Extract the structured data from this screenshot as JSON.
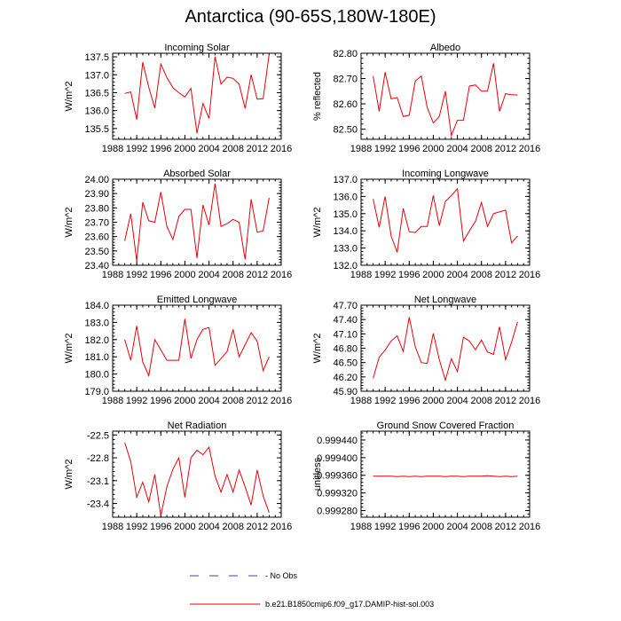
{
  "title": "Antarctica (90-65S,180W-180E)",
  "x_ticks": [
    "1988",
    "1992",
    "1996",
    "2000",
    "2004",
    "2008",
    "2012",
    "2016"
  ],
  "series_color": "#e8000b",
  "obs_color": "#4040c0",
  "legend": {
    "obs_label": "No Obs",
    "model_label": "b.e21.B1850cmip6.f09_g17.DAMIP-hist-sol.003"
  },
  "chart_data": [
    {
      "type": "line",
      "title": "Incoming Solar",
      "ylabel": "W/m^2",
      "xlim": [
        1988,
        2016
      ],
      "ylim": [
        135.2,
        137.6
      ],
      "yticks": [
        "135.5",
        "136.0",
        "136.5",
        "137.0",
        "137.5"
      ],
      "ytick_values": [
        135.5,
        136.0,
        136.5,
        137.0,
        137.5
      ],
      "x": [
        1990,
        1991,
        1992,
        1993,
        1994,
        1995,
        1996,
        1997,
        1998,
        1999,
        2000,
        2001,
        2002,
        2003,
        2004,
        2005,
        2006,
        2007,
        2008,
        2009,
        2010,
        2011,
        2012,
        2013,
        2014
      ],
      "values": [
        136.48,
        136.52,
        135.75,
        137.35,
        136.65,
        136.07,
        137.3,
        136.92,
        136.64,
        136.5,
        136.38,
        136.62,
        135.37,
        136.2,
        135.78,
        137.5,
        136.74,
        136.93,
        136.9,
        136.74,
        136.06,
        137.0,
        136.32,
        136.33,
        137.58
      ]
    },
    {
      "type": "line",
      "title": "Albedo",
      "ylabel": "% reflected",
      "xlim": [
        1988,
        2016
      ],
      "ylim": [
        82.46,
        82.8
      ],
      "yticks": [
        "82.50",
        "82.60",
        "82.70",
        "82.80"
      ],
      "ytick_values": [
        82.5,
        82.6,
        82.7,
        82.8
      ],
      "x": [
        1990,
        1991,
        1992,
        1993,
        1994,
        1995,
        1996,
        1997,
        1998,
        1999,
        2000,
        2001,
        2002,
        2003,
        2004,
        2005,
        2006,
        2007,
        2008,
        2009,
        2010,
        2011,
        2012,
        2013,
        2014
      ],
      "values": [
        82.71,
        82.57,
        82.725,
        82.62,
        82.625,
        82.55,
        82.555,
        82.69,
        82.71,
        82.585,
        82.525,
        82.55,
        82.65,
        82.475,
        82.535,
        82.535,
        82.67,
        82.675,
        82.65,
        82.65,
        82.76,
        82.57,
        82.64,
        82.636,
        82.635
      ]
    },
    {
      "type": "line",
      "title": "Absorbed Solar",
      "ylabel": "W/m^2",
      "xlim": [
        1988,
        2016
      ],
      "ylim": [
        23.4,
        24.0
      ],
      "yticks": [
        "23.40",
        "23.50",
        "23.60",
        "23.70",
        "23.80",
        "23.90",
        "24.00"
      ],
      "ytick_values": [
        23.4,
        23.5,
        23.6,
        23.7,
        23.8,
        23.9,
        24.0
      ],
      "x": [
        1990,
        1991,
        1992,
        1993,
        1994,
        1995,
        1996,
        1997,
        1998,
        1999,
        2000,
        2001,
        2002,
        2003,
        2004,
        2005,
        2006,
        2007,
        2008,
        2009,
        2010,
        2011,
        2012,
        2013,
        2014
      ],
      "values": [
        23.57,
        23.76,
        23.43,
        23.84,
        23.71,
        23.7,
        23.91,
        23.67,
        23.58,
        23.74,
        23.79,
        23.79,
        23.45,
        23.82,
        23.68,
        23.97,
        23.67,
        23.69,
        23.72,
        23.7,
        23.44,
        23.86,
        23.63,
        23.64,
        23.87
      ]
    },
    {
      "type": "line",
      "title": "Incoming Longwave",
      "ylabel": "W/m^2",
      "xlim": [
        1988,
        2016
      ],
      "ylim": [
        132.0,
        137.0
      ],
      "yticks": [
        "132.0",
        "133.0",
        "134.0",
        "135.0",
        "136.0",
        "137.0"
      ],
      "ytick_values": [
        132.0,
        133.0,
        134.0,
        135.0,
        136.0,
        137.0
      ],
      "x": [
        1990,
        1991,
        1992,
        1993,
        1994,
        1995,
        1996,
        1997,
        1998,
        1999,
        2000,
        2001,
        2002,
        2003,
        2004,
        2005,
        2006,
        2007,
        2008,
        2009,
        2010,
        2011,
        2012,
        2013,
        2014
      ],
      "values": [
        135.85,
        134.2,
        136.0,
        133.7,
        132.75,
        135.3,
        133.95,
        133.9,
        134.25,
        134.25,
        136.05,
        134.3,
        135.7,
        136.05,
        136.45,
        133.4,
        134.0,
        134.55,
        135.65,
        134.25,
        135.0,
        135.1,
        135.2,
        133.3,
        133.7
      ]
    },
    {
      "type": "line",
      "title": "Emitted Longwave",
      "ylabel": "W/m^2",
      "xlim": [
        1988,
        2016
      ],
      "ylim": [
        179.0,
        184.0
      ],
      "yticks": [
        "179.0",
        "180.0",
        "181.0",
        "182.0",
        "183.0",
        "184.0"
      ],
      "ytick_values": [
        179.0,
        180.0,
        181.0,
        182.0,
        183.0,
        184.0
      ],
      "x": [
        1990,
        1991,
        1992,
        1993,
        1994,
        1995,
        1996,
        1997,
        1998,
        1999,
        2000,
        2001,
        2002,
        2003,
        2004,
        2005,
        2006,
        2007,
        2008,
        2009,
        2010,
        2011,
        2012,
        2013,
        2014
      ],
      "values": [
        182.0,
        180.8,
        182.8,
        180.7,
        179.9,
        182.0,
        181.4,
        180.8,
        180.8,
        180.8,
        183.2,
        180.9,
        182.0,
        182.6,
        182.7,
        180.5,
        180.9,
        181.3,
        182.6,
        181.0,
        181.7,
        182.4,
        181.9,
        180.2,
        181.0
      ]
    },
    {
      "type": "line",
      "title": "Net Longwave",
      "ylabel": "W/m^2",
      "xlim": [
        1988,
        2016
      ],
      "ylim": [
        45.9,
        47.7
      ],
      "yticks": [
        "45.90",
        "46.20",
        "46.50",
        "46.80",
        "47.10",
        "47.40",
        "47.70"
      ],
      "ytick_values": [
        45.9,
        46.2,
        46.5,
        46.8,
        47.1,
        47.4,
        47.7
      ],
      "x": [
        1990,
        1991,
        1992,
        1993,
        1994,
        1995,
        1996,
        1997,
        1998,
        1999,
        2000,
        2001,
        2002,
        2003,
        2004,
        2005,
        2006,
        2007,
        2008,
        2009,
        2010,
        2011,
        2012,
        2013,
        2014
      ],
      "values": [
        46.17,
        46.61,
        46.76,
        46.95,
        47.06,
        46.73,
        47.45,
        46.83,
        46.5,
        46.48,
        47.11,
        46.56,
        46.13,
        46.58,
        46.31,
        47.03,
        46.95,
        46.77,
        46.97,
        46.72,
        46.67,
        47.25,
        46.56,
        46.92,
        47.35
      ]
    },
    {
      "type": "line",
      "title": "Net Radiation",
      "ylabel": "W/m^2",
      "xlim": [
        1988,
        2016
      ],
      "ylim": [
        -23.58,
        -22.45
      ],
      "yticks": [
        "-22.5",
        "-22.8",
        "-23.1",
        "-23.4"
      ],
      "ytick_values": [
        -22.5,
        -22.8,
        -23.1,
        -23.4
      ],
      "x": [
        1990,
        1991,
        1992,
        1993,
        1994,
        1995,
        1996,
        1997,
        1998,
        1999,
        2000,
        2001,
        2002,
        2003,
        2004,
        2005,
        2006,
        2007,
        2008,
        2009,
        2010,
        2011,
        2012,
        2013,
        2014
      ],
      "values": [
        -22.6,
        -22.85,
        -23.32,
        -23.12,
        -23.38,
        -23.02,
        -23.56,
        -23.18,
        -22.95,
        -22.8,
        -23.32,
        -22.8,
        -22.7,
        -22.76,
        -22.66,
        -23.04,
        -23.25,
        -23.02,
        -23.25,
        -22.96,
        -23.18,
        -23.42,
        -22.96,
        -23.3,
        -23.52
      ]
    },
    {
      "type": "line",
      "title": "Ground Snow Covered Fraction",
      "ylabel": "unitless",
      "xlim": [
        1988,
        2016
      ],
      "ylim": [
        0.999265,
        0.99946
      ],
      "yticks": [
        "0.999280",
        "0.999320",
        "0.999360",
        "0.999400",
        "0.999440"
      ],
      "ytick_values": [
        0.99928,
        0.99932,
        0.99936,
        0.9994,
        0.99944
      ],
      "x": [
        1990,
        1991,
        1992,
        1993,
        1994,
        1995,
        1996,
        1997,
        1998,
        1999,
        2000,
        2001,
        2002,
        2003,
        2004,
        2005,
        2006,
        2007,
        2008,
        2009,
        2010,
        2011,
        2012,
        2013,
        2014
      ],
      "values": [
        0.999358,
        0.999358,
        0.999358,
        0.999358,
        0.999357,
        0.999358,
        0.999357,
        0.999358,
        0.999357,
        0.999358,
        0.999358,
        0.999358,
        0.999357,
        0.999358,
        0.999358,
        0.999357,
        0.999358,
        0.999358,
        0.999358,
        0.999359,
        0.999358,
        0.999357,
        0.999358,
        0.999357,
        0.999358
      ]
    }
  ]
}
